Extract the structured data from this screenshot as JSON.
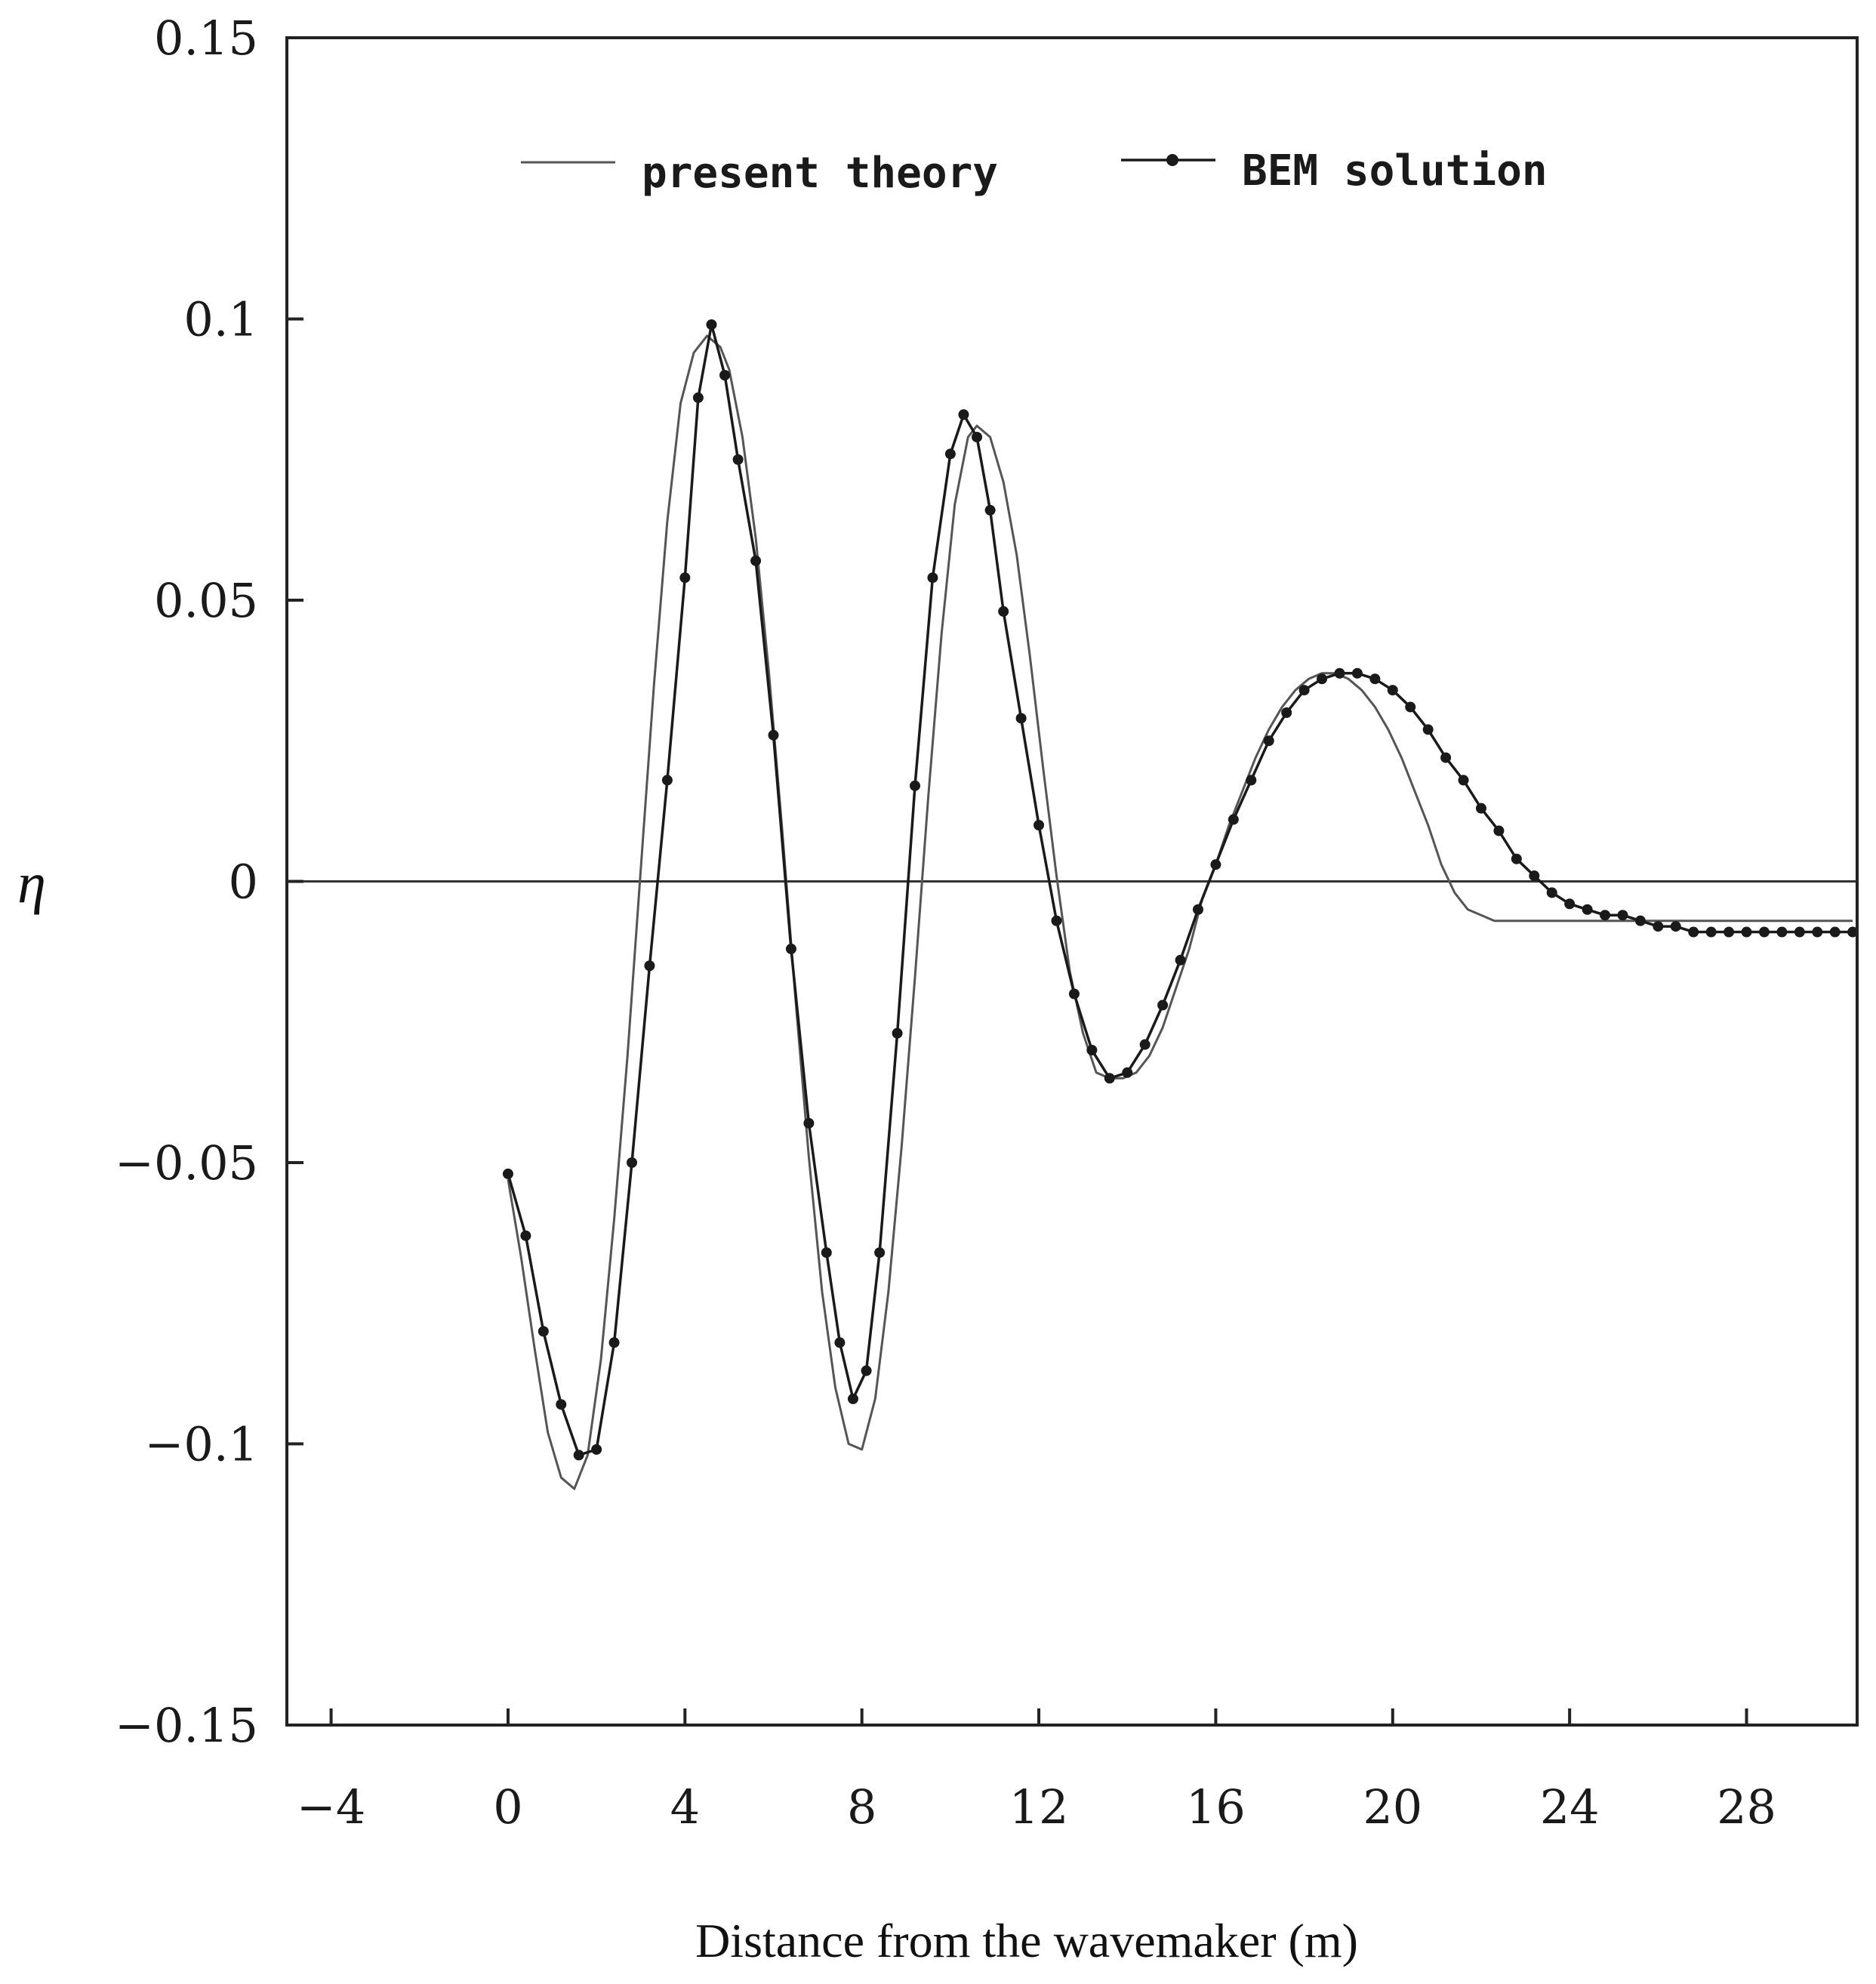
{
  "chart_data": {
    "type": "line",
    "xlabel": "Distance from the wavemaker (m)",
    "ylabel": "η",
    "xlim": [
      -5,
      30.5
    ],
    "ylim": [
      -0.15,
      0.15
    ],
    "x_ticks": [
      -4,
      0,
      4,
      8,
      12,
      16,
      20,
      24,
      28
    ],
    "x_tick_labels": [
      "−4",
      "0",
      "4",
      "8",
      "12",
      "16",
      "20",
      "24",
      "28"
    ],
    "y_ticks": [
      0.15,
      0.1,
      0.05,
      0,
      -0.05,
      -0.1,
      -0.15
    ],
    "y_tick_labels": [
      "0.15",
      "0.1",
      "0.05",
      "0",
      "−0.05",
      "−0.1",
      "−0.15"
    ],
    "zero_line": true,
    "grid": false,
    "legend_position": "top",
    "series": [
      {
        "name": "present theory",
        "style": "line",
        "x": [
          0.0,
          0.3,
          0.6,
          0.9,
          1.2,
          1.5,
          1.8,
          2.1,
          2.4,
          2.7,
          3.0,
          3.3,
          3.6,
          3.9,
          4.2,
          4.5,
          4.8,
          5.0,
          5.3,
          5.6,
          5.9,
          6.2,
          6.5,
          6.8,
          7.1,
          7.4,
          7.7,
          8.0,
          8.3,
          8.6,
          8.9,
          9.2,
          9.5,
          9.8,
          10.1,
          10.4,
          10.6,
          10.9,
          11.2,
          11.5,
          11.8,
          12.1,
          12.4,
          12.7,
          13.0,
          13.3,
          13.6,
          13.9,
          14.2,
          14.5,
          14.8,
          15.1,
          15.4,
          15.7,
          16.0,
          16.3,
          16.6,
          16.9,
          17.2,
          17.5,
          17.8,
          18.1,
          18.4,
          18.7,
          19.0,
          19.3,
          19.6,
          19.9,
          20.2,
          20.5,
          20.8,
          21.1,
          21.4,
          21.7,
          22.0,
          22.3,
          22.6,
          22.9,
          23.2,
          23.5,
          23.8,
          24.1,
          24.4,
          24.7,
          25.0,
          25.3,
          25.6,
          25.9,
          26.2,
          26.5,
          26.8,
          27.1,
          27.4,
          27.7,
          28.0,
          28.3,
          28.6,
          28.9,
          29.2,
          29.5,
          29.8,
          30.1,
          30.4
        ],
        "y": [
          -0.053,
          -0.067,
          -0.083,
          -0.098,
          -0.106,
          -0.108,
          -0.102,
          -0.085,
          -0.06,
          -0.031,
          0.002,
          0.035,
          0.064,
          0.085,
          0.094,
          0.097,
          0.095,
          0.091,
          0.079,
          0.061,
          0.037,
          0.009,
          -0.021,
          -0.049,
          -0.073,
          -0.09,
          -0.1,
          -0.101,
          -0.092,
          -0.073,
          -0.047,
          -0.017,
          0.015,
          0.044,
          0.067,
          0.079,
          0.081,
          0.079,
          0.071,
          0.058,
          0.04,
          0.02,
          0.001,
          -0.016,
          -0.027,
          -0.034,
          -0.035,
          -0.035,
          -0.034,
          -0.031,
          -0.026,
          -0.019,
          -0.012,
          -0.003,
          0.003,
          0.01,
          0.016,
          0.022,
          0.027,
          0.031,
          0.034,
          0.036,
          0.037,
          0.037,
          0.036,
          0.034,
          0.031,
          0.027,
          0.022,
          0.016,
          0.01,
          0.003,
          -0.002,
          -0.005,
          -0.006,
          -0.007,
          -0.007,
          -0.007,
          -0.007,
          -0.007,
          -0.007,
          -0.007,
          -0.007,
          -0.007,
          -0.007,
          -0.007,
          -0.007,
          -0.007,
          -0.007,
          -0.007,
          -0.007,
          -0.007,
          -0.007,
          -0.007,
          -0.007,
          -0.007,
          -0.007,
          -0.007,
          -0.007,
          -0.007,
          -0.007,
          -0.007,
          -0.007
        ],
        "color": "#555555"
      },
      {
        "name": "BEM solution",
        "style": "line+markers",
        "x": [
          0.0,
          0.4,
          0.8,
          1.2,
          1.6,
          2.0,
          2.4,
          2.8,
          3.2,
          3.6,
          4.0,
          4.3,
          4.6,
          4.9,
          5.2,
          5.6,
          6.0,
          6.4,
          6.8,
          7.2,
          7.5,
          7.8,
          8.1,
          8.4,
          8.8,
          9.2,
          9.6,
          10.0,
          10.3,
          10.6,
          10.9,
          11.2,
          11.6,
          12.0,
          12.4,
          12.8,
          13.2,
          13.6,
          14.0,
          14.4,
          14.8,
          15.2,
          15.6,
          16.0,
          16.4,
          16.8,
          17.2,
          17.6,
          18.0,
          18.4,
          18.8,
          19.2,
          19.6,
          20.0,
          20.4,
          20.8,
          21.2,
          21.6,
          22.0,
          22.4,
          22.8,
          23.2,
          23.6,
          24.0,
          24.4,
          24.8,
          25.2,
          25.6,
          26.0,
          26.4,
          26.8,
          27.2,
          27.6,
          28.0,
          28.4,
          28.8,
          29.2,
          29.6,
          30.0,
          30.4
        ],
        "y": [
          -0.052,
          -0.063,
          -0.08,
          -0.093,
          -0.102,
          -0.101,
          -0.082,
          -0.05,
          -0.015,
          0.018,
          0.054,
          0.086,
          0.099,
          0.09,
          0.075,
          0.057,
          0.026,
          -0.012,
          -0.043,
          -0.066,
          -0.082,
          -0.092,
          -0.087,
          -0.066,
          -0.027,
          0.017,
          0.054,
          0.076,
          0.083,
          0.079,
          0.066,
          0.048,
          0.029,
          0.01,
          -0.007,
          -0.02,
          -0.03,
          -0.035,
          -0.034,
          -0.029,
          -0.022,
          -0.014,
          -0.005,
          0.003,
          0.011,
          0.018,
          0.025,
          0.03,
          0.034,
          0.036,
          0.037,
          0.037,
          0.036,
          0.034,
          0.031,
          0.027,
          0.022,
          0.018,
          0.013,
          0.009,
          0.004,
          0.001,
          -0.002,
          -0.004,
          -0.005,
          -0.006,
          -0.006,
          -0.007,
          -0.008,
          -0.008,
          -0.009,
          -0.009,
          -0.009,
          -0.009,
          -0.009,
          -0.009,
          -0.009,
          -0.009,
          -0.009,
          -0.009
        ],
        "color": "#1a1a1a"
      }
    ]
  }
}
